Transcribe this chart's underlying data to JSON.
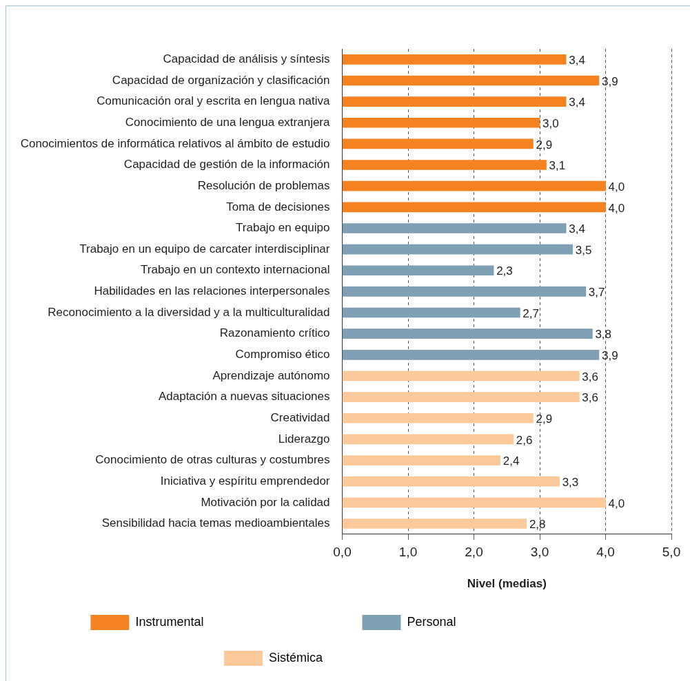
{
  "chart_data": {
    "type": "bar",
    "orientation": "horizontal",
    "xlabel": "Nivel (medias)",
    "categories": [
      "Capacidad de análisis y síntesis",
      "Capacidad de organización y clasificación",
      "Comunicación oral y escrita en lengua nativa",
      "Conocimiento de una lengua extranjera",
      "Conocimientos de informática relativos al ámbito de estudio",
      "Capacidad de gestión de la información",
      "Resolución de problemas",
      "Toma de decisiones",
      "Trabajo en equipo",
      "Trabajo en un equipo de carcater interdisciplinar",
      "Trabajo en un contexto internacional",
      "Habilidades en las relaciones interpersonales",
      "Reconocimiento a la diversidad y a la multiculturalidad",
      "Razonamiento crítico",
      "Compromiso ético",
      "Aprendizaje autónomo",
      "Adaptación a nuevas situaciones",
      "Creatividad",
      "Liderazgo",
      "Conocimiento de otras culturas y costumbres",
      "Iniciativa y espíritu emprendedor",
      "Motivación por la calidad",
      "Sensibilidad hacia temas medioambientales"
    ],
    "series": [
      {
        "name": "Instrumental",
        "color": "#f58220",
        "values": [
          3.4,
          3.9,
          3.4,
          3.0,
          2.9,
          3.1,
          4.0,
          4.0,
          null,
          null,
          null,
          null,
          null,
          null,
          null,
          null,
          null,
          null,
          null,
          null,
          null,
          null,
          null
        ],
        "value_labels": [
          "3,4",
          "3,9",
          "3,4",
          "3,0",
          "2,9",
          "3,1",
          "4,0",
          "4,0",
          null,
          null,
          null,
          null,
          null,
          null,
          null,
          null,
          null,
          null,
          null,
          null,
          null,
          null,
          null
        ]
      },
      {
        "name": "Personal",
        "color": "#7f9fb5",
        "values": [
          null,
          null,
          null,
          null,
          null,
          null,
          null,
          null,
          3.4,
          3.5,
          2.3,
          3.7,
          2.7,
          3.8,
          3.9,
          null,
          null,
          null,
          null,
          null,
          null,
          null,
          null
        ],
        "value_labels": [
          null,
          null,
          null,
          null,
          null,
          null,
          null,
          null,
          "3,4",
          "3,5",
          "2,3",
          "3,7",
          "2,7",
          "3,8",
          "3,9",
          null,
          null,
          null,
          null,
          null,
          null,
          null,
          null
        ]
      },
      {
        "name": "Sistémica",
        "color": "#fcc99a",
        "values": [
          null,
          null,
          null,
          null,
          null,
          null,
          null,
          null,
          null,
          null,
          null,
          null,
          null,
          null,
          null,
          3.6,
          3.6,
          2.9,
          2.6,
          2.4,
          3.3,
          4.0,
          2.8
        ],
        "value_labels": [
          null,
          null,
          null,
          null,
          null,
          null,
          null,
          null,
          null,
          null,
          null,
          null,
          null,
          null,
          null,
          "3,6",
          "3,6",
          "2,9",
          "2,6",
          "2,4",
          "3,3",
          "4,0",
          "2,8"
        ]
      }
    ],
    "xlim": [
      0,
      5
    ],
    "xticks": [
      {
        "value": 0,
        "label": "0,0"
      },
      {
        "value": 1,
        "label": "1,0"
      },
      {
        "value": 2,
        "label": "2,0"
      },
      {
        "value": 3,
        "label": "3,0"
      },
      {
        "value": 4,
        "label": "4,0"
      },
      {
        "value": 5,
        "label": "5,0"
      }
    ],
    "grid": "x",
    "legend": "bottom"
  }
}
